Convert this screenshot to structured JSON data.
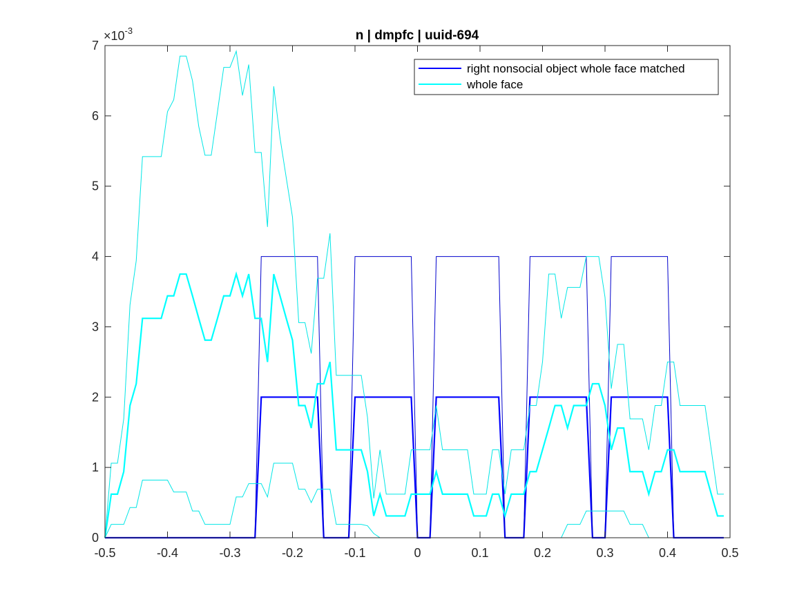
{
  "chart_data": {
    "type": "line",
    "title": "n | dmpfc | uuid-694",
    "xlabel": "",
    "ylabel": "",
    "xlim": [
      -0.5,
      0.5
    ],
    "ylim": [
      0,
      7
    ],
    "y_scale_base": "×10",
    "y_scale_exponent": "-3",
    "x_ticks": [
      -0.5,
      -0.4,
      -0.3,
      -0.2,
      -0.1,
      0,
      0.1,
      0.2,
      0.3,
      0.4,
      0.5
    ],
    "x_tick_labels": [
      "-0.5",
      "-0.4",
      "-0.3",
      "-0.2",
      "-0.1",
      "0",
      "0.1",
      "0.2",
      "0.3",
      "0.4",
      "0.5"
    ],
    "y_ticks": [
      0,
      1,
      2,
      3,
      4,
      5,
      6,
      7
    ],
    "y_tick_labels": [
      "0",
      "1",
      "2",
      "3",
      "4",
      "5",
      "6",
      "7"
    ],
    "legend_position": "top-right",
    "grid": false,
    "series": [
      {
        "name": "right nonsocial object whole face matched",
        "color": "#0000ff",
        "role": "mean",
        "x": [
          -0.5,
          -0.26,
          -0.25,
          -0.16,
          -0.15,
          -0.11,
          -0.1,
          -0.01,
          0,
          0.02,
          0.03,
          0.13,
          0.14,
          0.17,
          0.18,
          0.27,
          0.28,
          0.3,
          0.31,
          0.4,
          0.41,
          0.49
        ],
        "y": [
          0,
          0,
          2,
          2,
          0,
          0,
          2,
          2,
          0,
          0,
          2,
          2,
          0,
          0,
          2,
          2,
          0,
          0,
          2,
          2,
          0,
          0
        ]
      },
      {
        "name": "",
        "color": "#0000cc",
        "role": "upper",
        "x": [
          -0.5,
          -0.26,
          -0.25,
          -0.16,
          -0.15,
          -0.11,
          -0.1,
          -0.01,
          0,
          0.02,
          0.03,
          0.13,
          0.14,
          0.17,
          0.18,
          0.27,
          0.28,
          0.3,
          0.31,
          0.4,
          0.41,
          0.49
        ],
        "y": [
          0,
          0,
          4,
          4,
          0,
          0,
          4,
          4,
          0,
          0,
          4,
          4,
          0,
          0,
          4,
          4,
          0,
          0,
          4,
          4,
          0,
          0
        ]
      },
      {
        "name": "whole face",
        "color": "#00ffff",
        "role": "mean",
        "x": [
          -0.5,
          -0.49,
          -0.48,
          -0.47,
          -0.46,
          -0.45,
          -0.44,
          -0.43,
          -0.42,
          -0.41,
          -0.4,
          -0.39,
          -0.38,
          -0.37,
          -0.36,
          -0.35,
          -0.34,
          -0.33,
          -0.32,
          -0.31,
          -0.3,
          -0.29,
          -0.28,
          -0.27,
          -0.26,
          -0.25,
          -0.24,
          -0.23,
          -0.22,
          -0.21,
          -0.2,
          -0.19,
          -0.18,
          -0.17,
          -0.16,
          -0.15,
          -0.14,
          -0.13,
          -0.12,
          -0.11,
          -0.1,
          -0.09,
          -0.08,
          -0.07,
          -0.06,
          -0.05,
          -0.04,
          -0.03,
          -0.02,
          -0.01,
          0,
          0.01,
          0.02,
          0.03,
          0.04,
          0.05,
          0.06,
          0.07,
          0.08,
          0.09,
          0.1,
          0.11,
          0.12,
          0.13,
          0.14,
          0.15,
          0.16,
          0.17,
          0.18,
          0.19,
          0.2,
          0.21,
          0.22,
          0.23,
          0.24,
          0.25,
          0.26,
          0.27,
          0.28,
          0.29,
          0.3,
          0.31,
          0.32,
          0.33,
          0.34,
          0.35,
          0.36,
          0.37,
          0.38,
          0.39,
          0.4,
          0.41,
          0.42,
          0.43,
          0.44,
          0.45,
          0.46,
          0.47,
          0.48,
          0.49
        ],
        "y": [
          0,
          0.62,
          0.62,
          0.94,
          1.88,
          2.19,
          3.12,
          3.12,
          3.12,
          3.12,
          3.44,
          3.44,
          3.75,
          3.75,
          3.44,
          3.12,
          2.81,
          2.81,
          3.12,
          3.44,
          3.44,
          3.75,
          3.44,
          3.75,
          3.12,
          3.12,
          2.5,
          3.75,
          3.44,
          3.12,
          2.81,
          1.88,
          1.88,
          1.56,
          2.19,
          2.19,
          2.5,
          1.25,
          1.25,
          1.25,
          1.25,
          1.25,
          0.94,
          0.31,
          0.62,
          0.31,
          0.31,
          0.31,
          0.31,
          0.62,
          0.62,
          0.62,
          0.62,
          0.94,
          0.62,
          0.62,
          0.62,
          0.62,
          0.62,
          0.31,
          0.31,
          0.31,
          0.62,
          0.62,
          0.31,
          0.62,
          0.62,
          0.62,
          0.94,
          0.94,
          1.25,
          1.56,
          1.88,
          1.88,
          1.56,
          1.88,
          1.88,
          1.88,
          2.19,
          2.19,
          1.88,
          1.25,
          1.56,
          1.56,
          0.94,
          0.94,
          0.94,
          0.62,
          0.94,
          0.94,
          1.25,
          1.25,
          0.94,
          0.94,
          0.94,
          0.94,
          0.94,
          0.62,
          0.31,
          0.31
        ]
      },
      {
        "name": "",
        "color": "#00e6e6",
        "role": "upper",
        "x": [
          -0.5,
          -0.49,
          -0.48,
          -0.47,
          -0.46,
          -0.45,
          -0.44,
          -0.43,
          -0.42,
          -0.41,
          -0.4,
          -0.39,
          -0.38,
          -0.37,
          -0.36,
          -0.35,
          -0.34,
          -0.33,
          -0.32,
          -0.31,
          -0.3,
          -0.29,
          -0.28,
          -0.27,
          -0.26,
          -0.25,
          -0.24,
          -0.23,
          -0.22,
          -0.21,
          -0.2,
          -0.19,
          -0.18,
          -0.17,
          -0.16,
          -0.15,
          -0.14,
          -0.13,
          -0.12,
          -0.11,
          -0.1,
          -0.09,
          -0.08,
          -0.07,
          -0.06,
          -0.05,
          -0.04,
          -0.03,
          -0.02,
          -0.01,
          0,
          0.01,
          0.02,
          0.03,
          0.04,
          0.05,
          0.06,
          0.07,
          0.08,
          0.09,
          0.1,
          0.11,
          0.12,
          0.13,
          0.14,
          0.15,
          0.16,
          0.17,
          0.18,
          0.19,
          0.2,
          0.21,
          0.22,
          0.23,
          0.24,
          0.25,
          0.26,
          0.27,
          0.28,
          0.29,
          0.3,
          0.31,
          0.32,
          0.33,
          0.34,
          0.35,
          0.36,
          0.37,
          0.38,
          0.39,
          0.4,
          0.41,
          0.42,
          0.43,
          0.44,
          0.45,
          0.46,
          0.47,
          0.48,
          0.49
        ],
        "y": [
          0,
          1.06,
          1.06,
          1.69,
          3.31,
          3.94,
          5.42,
          5.42,
          5.42,
          5.42,
          6.06,
          6.23,
          6.85,
          6.85,
          6.5,
          5.85,
          5.44,
          5.44,
          6.06,
          6.69,
          6.69,
          6.92,
          6.29,
          6.73,
          5.48,
          5.48,
          4.42,
          6.42,
          5.69,
          5.12,
          4.56,
          3.06,
          3.06,
          2.62,
          3.69,
          3.69,
          4.33,
          2.31,
          2.31,
          2.31,
          2.31,
          2.31,
          1.71,
          0.56,
          1.25,
          0.62,
          0.62,
          0.62,
          0.62,
          1.25,
          1.25,
          1.25,
          1.25,
          1.88,
          1.25,
          1.25,
          1.25,
          1.25,
          1.25,
          0.62,
          0.62,
          0.62,
          1.25,
          1.25,
          0.62,
          1.25,
          1.25,
          1.25,
          1.88,
          1.88,
          2.5,
          3.75,
          3.75,
          3.12,
          3.56,
          3.56,
          3.56,
          4.0,
          4.0,
          4.0,
          3.42,
          2.12,
          2.75,
          2.75,
          1.69,
          1.69,
          1.69,
          1.25,
          1.88,
          1.88,
          2.5,
          2.5,
          1.88,
          1.88,
          1.88,
          1.88,
          1.88,
          1.25,
          0.62,
          0.62
        ]
      },
      {
        "name": "",
        "color": "#00e6e6",
        "role": "lower",
        "x": [
          -0.5,
          -0.49,
          -0.48,
          -0.47,
          -0.46,
          -0.45,
          -0.44,
          -0.43,
          -0.42,
          -0.41,
          -0.4,
          -0.39,
          -0.38,
          -0.37,
          -0.36,
          -0.35,
          -0.34,
          -0.33,
          -0.32,
          -0.31,
          -0.3,
          -0.29,
          -0.28,
          -0.27,
          -0.26,
          -0.25,
          -0.24,
          -0.23,
          -0.22,
          -0.21,
          -0.2,
          -0.19,
          -0.18,
          -0.17,
          -0.16,
          -0.15,
          -0.14,
          -0.13,
          -0.12,
          -0.11,
          -0.1,
          -0.09,
          -0.08,
          -0.07,
          -0.06,
          -0.05,
          -0.04,
          -0.03,
          -0.02,
          -0.01,
          0,
          0.01,
          0.02,
          0.03,
          0.04,
          0.05,
          0.06,
          0.07,
          0.08,
          0.09,
          0.1,
          0.11,
          0.12,
          0.13,
          0.14,
          0.15,
          0.16,
          0.17,
          0.18,
          0.19,
          0.2,
          0.21,
          0.22,
          0.23,
          0.24,
          0.25,
          0.26,
          0.27,
          0.28,
          0.29,
          0.3,
          0.31,
          0.32,
          0.33,
          0.34,
          0.35,
          0.36,
          0.37,
          0.38,
          0.39,
          0.4,
          0.41,
          0.42,
          0.43,
          0.44,
          0.45,
          0.46,
          0.47,
          0.48,
          0.49
        ],
        "y": [
          0,
          0.19,
          0.19,
          0.19,
          0.43,
          0.43,
          0.82,
          0.82,
          0.82,
          0.82,
          0.82,
          0.65,
          0.65,
          0.65,
          0.38,
          0.38,
          0.19,
          0.19,
          0.19,
          0.19,
          0.19,
          0.58,
          0.58,
          0.77,
          0.77,
          0.77,
          0.58,
          1.06,
          1.06,
          1.06,
          1.06,
          0.69,
          0.69,
          0.5,
          0.69,
          0.69,
          0.69,
          0.19,
          0.19,
          0.19,
          0.19,
          0.19,
          0.17,
          0.06,
          0,
          0,
          0,
          0,
          0,
          0,
          0,
          0,
          0,
          0,
          0,
          0,
          0,
          0,
          0,
          0,
          0,
          0,
          0,
          0,
          0,
          0,
          0,
          0,
          0,
          0,
          0,
          0,
          0,
          0,
          0.19,
          0.19,
          0.19,
          0.38,
          0.38,
          0.38,
          0.38,
          0.38,
          0.38,
          0.38,
          0.19,
          0.19,
          0.19,
          0,
          0,
          0,
          0,
          0,
          0,
          0,
          0,
          0,
          0,
          0,
          0,
          0
        ]
      }
    ]
  }
}
